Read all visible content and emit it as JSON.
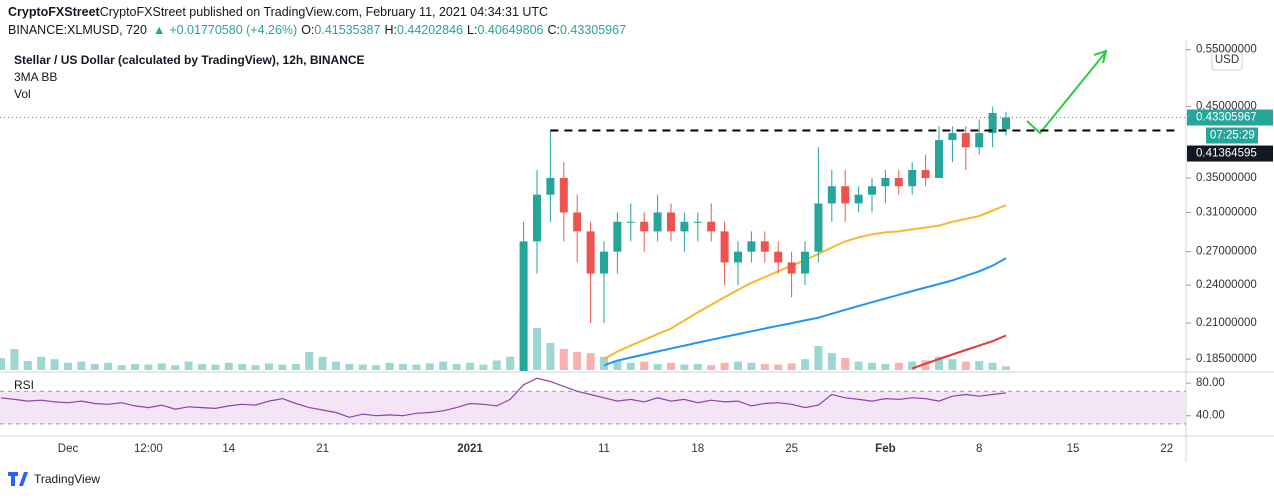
{
  "header": {
    "line1": "CryptoFXStreet published on TradingView.com, February 11, 2021 04:34:31 UTC",
    "symbol": "BINANCE:XLMUSD, 720",
    "change": "+0.01770580 (+4.26%)",
    "ohlc": [
      {
        "label": "O:",
        "value": "0.41535387"
      },
      {
        "label": "H:",
        "value": "0.44202846"
      },
      {
        "label": "L:",
        "value": "0.40649806"
      },
      {
        "label": "C:",
        "value": "0.43305967"
      }
    ]
  },
  "chart_data": {
    "type": "candlestick",
    "title": "Stellar / US Dollar (calculated by TradingView), 12h, BINANCE",
    "indicators": [
      "3MA BB",
      "Vol"
    ],
    "currency": "USD",
    "categories": [
      null,
      null,
      null,
      null,
      null,
      "Dec",
      null,
      null,
      null,
      null,
      null,
      "12:00",
      null,
      null,
      null,
      null,
      null,
      "14",
      null,
      null,
      null,
      null,
      null,
      null,
      "21",
      null,
      null,
      null,
      null,
      null,
      null,
      null,
      null,
      null,
      null,
      "2021",
      null,
      null,
      null,
      null,
      null,
      null,
      null,
      null,
      null,
      "11",
      null,
      null,
      null,
      null,
      null,
      null,
      "18",
      null,
      null,
      null,
      null,
      null,
      null,
      "25",
      null,
      null,
      null,
      null,
      null,
      null,
      "Feb",
      null,
      null,
      null,
      null,
      null,
      null,
      "8",
      null,
      null,
      null,
      null,
      null,
      null,
      "15",
      null,
      null,
      null,
      null,
      null,
      null,
      "22",
      null
    ],
    "open": [
      null,
      null,
      null,
      null,
      null,
      null,
      null,
      null,
      null,
      null,
      null,
      null,
      null,
      null,
      null,
      null,
      null,
      null,
      null,
      null,
      null,
      null,
      null,
      null,
      null,
      null,
      null,
      null,
      null,
      null,
      null,
      null,
      null,
      null,
      null,
      null,
      null,
      null,
      null,
      0.175,
      0.28,
      0.33,
      0.35,
      0.31,
      0.29,
      0.25,
      0.27,
      0.3,
      0.3,
      0.29,
      0.31,
      0.29,
      0.3,
      0.3,
      0.29,
      0.26,
      0.27,
      0.28,
      0.27,
      0.26,
      0.25,
      0.27,
      0.32,
      0.34,
      0.32,
      0.33,
      0.34,
      0.35,
      0.34,
      0.36,
      0.35,
      0.4,
      0.41,
      0.39,
      0.41,
      0.41535387,
      null,
      null,
      null,
      null,
      null,
      null,
      null,
      null,
      null,
      null,
      null,
      null,
      null
    ],
    "high": [
      null,
      null,
      null,
      null,
      null,
      null,
      null,
      null,
      null,
      null,
      null,
      null,
      null,
      null,
      null,
      null,
      null,
      null,
      null,
      null,
      null,
      null,
      null,
      null,
      null,
      null,
      null,
      null,
      null,
      null,
      null,
      null,
      null,
      null,
      null,
      null,
      null,
      null,
      null,
      0.3,
      0.36,
      0.414,
      0.37,
      0.33,
      0.3,
      0.28,
      0.31,
      0.32,
      0.31,
      0.33,
      0.32,
      0.31,
      0.31,
      0.32,
      0.3,
      0.28,
      0.29,
      0.29,
      0.28,
      0.27,
      0.28,
      0.39,
      0.36,
      0.36,
      0.34,
      0.35,
      0.36,
      0.36,
      0.37,
      0.38,
      0.42,
      0.42,
      0.42,
      0.43,
      0.45,
      0.44202846,
      null,
      null,
      null,
      null,
      null,
      null,
      null,
      null,
      null,
      null,
      null,
      null,
      null
    ],
    "low": [
      null,
      null,
      null,
      null,
      null,
      null,
      null,
      null,
      null,
      null,
      null,
      null,
      null,
      null,
      null,
      null,
      null,
      null,
      null,
      null,
      null,
      null,
      null,
      null,
      null,
      null,
      null,
      null,
      null,
      null,
      null,
      null,
      null,
      null,
      null,
      null,
      null,
      null,
      null,
      0.17,
      0.25,
      0.3,
      0.28,
      0.26,
      0.21,
      0.21,
      0.25,
      0.28,
      0.27,
      0.28,
      0.28,
      0.27,
      0.28,
      0.28,
      0.24,
      0.24,
      0.26,
      0.26,
      0.25,
      0.23,
      0.24,
      0.26,
      0.3,
      0.3,
      0.31,
      0.31,
      0.32,
      0.33,
      0.33,
      0.34,
      0.35,
      0.37,
      0.36,
      0.38,
      0.39,
      0.40649806,
      null,
      null,
      null,
      null,
      null,
      null,
      null,
      null,
      null,
      null,
      null,
      null,
      null
    ],
    "close": [
      null,
      null,
      null,
      null,
      null,
      null,
      null,
      null,
      null,
      null,
      null,
      null,
      null,
      null,
      null,
      null,
      null,
      null,
      null,
      null,
      null,
      null,
      null,
      null,
      null,
      null,
      null,
      null,
      null,
      null,
      null,
      null,
      null,
      null,
      null,
      null,
      null,
      null,
      null,
      0.28,
      0.33,
      0.35,
      0.31,
      0.29,
      0.25,
      0.27,
      0.3,
      0.3,
      0.29,
      0.31,
      0.29,
      0.3,
      0.3,
      0.29,
      0.26,
      0.27,
      0.28,
      0.27,
      0.26,
      0.25,
      0.27,
      0.32,
      0.34,
      0.32,
      0.33,
      0.34,
      0.35,
      0.34,
      0.36,
      0.35,
      0.4,
      0.41,
      0.39,
      0.41,
      0.44,
      0.43305967,
      null,
      null,
      null,
      null,
      null,
      null,
      null,
      null,
      null,
      null,
      null,
      null,
      null
    ],
    "volume": [
      20,
      35,
      15,
      22,
      18,
      12,
      14,
      10,
      12,
      8,
      10,
      9,
      11,
      8,
      14,
      10,
      9,
      12,
      10,
      8,
      11,
      9,
      10,
      30,
      22,
      14,
      10,
      9,
      8,
      12,
      10,
      9,
      11,
      14,
      10,
      12,
      9,
      16,
      22,
      100,
      70,
      45,
      35,
      30,
      28,
      22,
      15,
      12,
      14,
      10,
      12,
      9,
      10,
      8,
      12,
      14,
      12,
      10,
      9,
      11,
      18,
      40,
      28,
      20,
      14,
      12,
      10,
      12,
      14,
      16,
      22,
      18,
      14,
      15,
      12,
      6,
      null,
      null,
      null,
      null,
      null,
      null,
      null,
      null,
      null,
      null,
      null,
      null,
      null
    ],
    "moving_averages": [
      {
        "color": "#f9b72d",
        "values": [
          null,
          null,
          null,
          null,
          null,
          null,
          null,
          null,
          null,
          null,
          null,
          null,
          null,
          null,
          null,
          null,
          null,
          null,
          null,
          null,
          null,
          null,
          null,
          null,
          null,
          null,
          null,
          null,
          null,
          null,
          null,
          null,
          null,
          null,
          null,
          null,
          null,
          null,
          null,
          null,
          null,
          null,
          null,
          null,
          null,
          0.185,
          0.19,
          0.194,
          0.198,
          0.202,
          0.206,
          0.212,
          0.218,
          0.224,
          0.23,
          0.236,
          0.242,
          0.247,
          0.252,
          0.257,
          0.262,
          0.268,
          0.274,
          0.28,
          0.284,
          0.287,
          0.289,
          0.29,
          0.292,
          0.294,
          0.296,
          0.3,
          0.303,
          0.306,
          0.312,
          0.318,
          null,
          null,
          null,
          null,
          null,
          null,
          null,
          null,
          null,
          null,
          null,
          null,
          null
        ]
      },
      {
        "color": "#2196f3",
        "values": [
          null,
          null,
          null,
          null,
          null,
          null,
          null,
          null,
          null,
          null,
          null,
          null,
          null,
          null,
          null,
          null,
          null,
          null,
          null,
          null,
          null,
          null,
          null,
          null,
          null,
          null,
          null,
          null,
          null,
          null,
          null,
          null,
          null,
          null,
          null,
          null,
          null,
          null,
          null,
          null,
          null,
          null,
          null,
          null,
          null,
          0.181,
          0.184,
          0.186,
          0.188,
          0.19,
          0.192,
          0.194,
          0.196,
          0.198,
          0.2,
          0.202,
          0.204,
          0.206,
          0.208,
          0.21,
          0.212,
          0.214,
          0.217,
          0.22,
          0.223,
          0.226,
          0.229,
          0.232,
          0.235,
          0.238,
          0.241,
          0.244,
          0.248,
          0.252,
          0.257,
          0.264,
          null,
          null,
          null,
          null,
          null,
          null,
          null,
          null,
          null,
          null,
          null,
          null,
          null
        ]
      },
      {
        "color": "#e53935",
        "values": [
          null,
          null,
          null,
          null,
          null,
          null,
          null,
          null,
          null,
          null,
          null,
          null,
          null,
          null,
          null,
          null,
          null,
          null,
          null,
          null,
          null,
          null,
          null,
          null,
          null,
          null,
          null,
          null,
          null,
          null,
          null,
          null,
          null,
          null,
          null,
          null,
          null,
          null,
          null,
          null,
          null,
          null,
          null,
          null,
          null,
          null,
          null,
          null,
          null,
          null,
          null,
          null,
          null,
          null,
          null,
          null,
          null,
          null,
          null,
          null,
          null,
          null,
          null,
          null,
          null,
          null,
          null,
          null,
          0.179,
          0.182,
          0.185,
          0.188,
          0.191,
          0.194,
          0.197,
          0.201,
          null,
          null,
          null,
          null,
          null,
          null,
          null,
          null,
          null,
          null,
          null,
          null,
          null
        ]
      }
    ],
    "up_color": "#26a69a",
    "down_color": "#ef5350",
    "log_scale": true,
    "ylim": [
      0.178,
      0.569
    ],
    "yticks": [
      {
        "value": 0.55,
        "label": "0.55000000"
      },
      {
        "value": 0.45,
        "label": "0.45000000"
      },
      {
        "value": 0.35,
        "label": "0.35000000"
      },
      {
        "value": 0.31,
        "label": "0.31000000"
      },
      {
        "value": 0.27,
        "label": "0.27000000"
      },
      {
        "value": 0.24,
        "label": "0.24000000"
      },
      {
        "value": 0.21,
        "label": "0.21000000"
      },
      {
        "value": 0.185,
        "label": "0.18500000"
      }
    ],
    "last_price": {
      "value": 0.43305967,
      "label": "0.43305967"
    },
    "countdown": "07:25:29",
    "level": {
      "value": 0.41364595,
      "label": "0.41364595"
    }
  },
  "rsi": {
    "title": "RSI",
    "color": "#8e44ad",
    "values": [
      62,
      60,
      58,
      59,
      57,
      56,
      58,
      55,
      54,
      56,
      52,
      50,
      53,
      48,
      51,
      50,
      49,
      52,
      54,
      53,
      58,
      61,
      55,
      50,
      47,
      44,
      38,
      42,
      40,
      41,
      40,
      43,
      44,
      46,
      50,
      55,
      54,
      52,
      60,
      78,
      86,
      82,
      76,
      70,
      66,
      62,
      58,
      60,
      57,
      62,
      58,
      60,
      56,
      59,
      57,
      58,
      52,
      55,
      56,
      54,
      50,
      53,
      66,
      62,
      60,
      58,
      61,
      60,
      62,
      61,
      58,
      64,
      66,
      64,
      66,
      68,
      null,
      null,
      null,
      null,
      null,
      null,
      null,
      null,
      null,
      null,
      null,
      null,
      null
    ],
    "ylim": [
      20,
      90
    ],
    "yticks": [
      {
        "value": 80,
        "label": "80.00"
      },
      {
        "value": 40,
        "label": "40.00"
      }
    ],
    "band": [
      30,
      70
    ]
  },
  "footer": {
    "brand": "TradingView"
  }
}
